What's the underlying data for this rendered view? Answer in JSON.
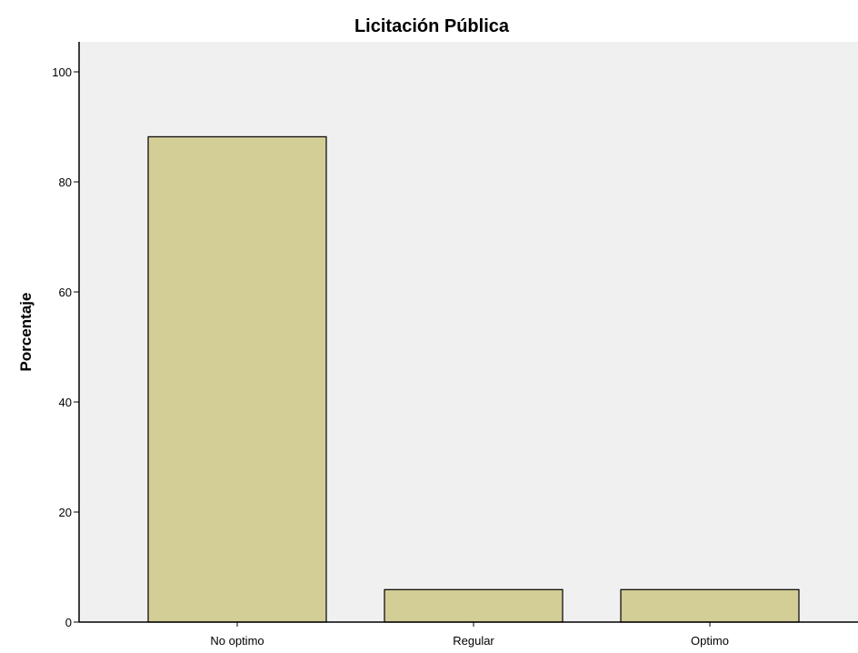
{
  "chart_data": {
    "type": "bar",
    "title": "Licitación Pública",
    "xlabel": "",
    "ylabel": "Porcentaje",
    "categories": [
      "No optimo",
      "Regular",
      "Optimo"
    ],
    "values": [
      88.2,
      5.9,
      5.9
    ],
    "ylim": [
      0,
      105
    ],
    "yticks": [
      0,
      20,
      40,
      60,
      80,
      100
    ],
    "grid": false,
    "legend": "none"
  },
  "colors": {
    "bar_fill": "#d3cd96",
    "bar_stroke": "#000000",
    "plot_background": "#f0f0f0",
    "axis": "#000000"
  }
}
